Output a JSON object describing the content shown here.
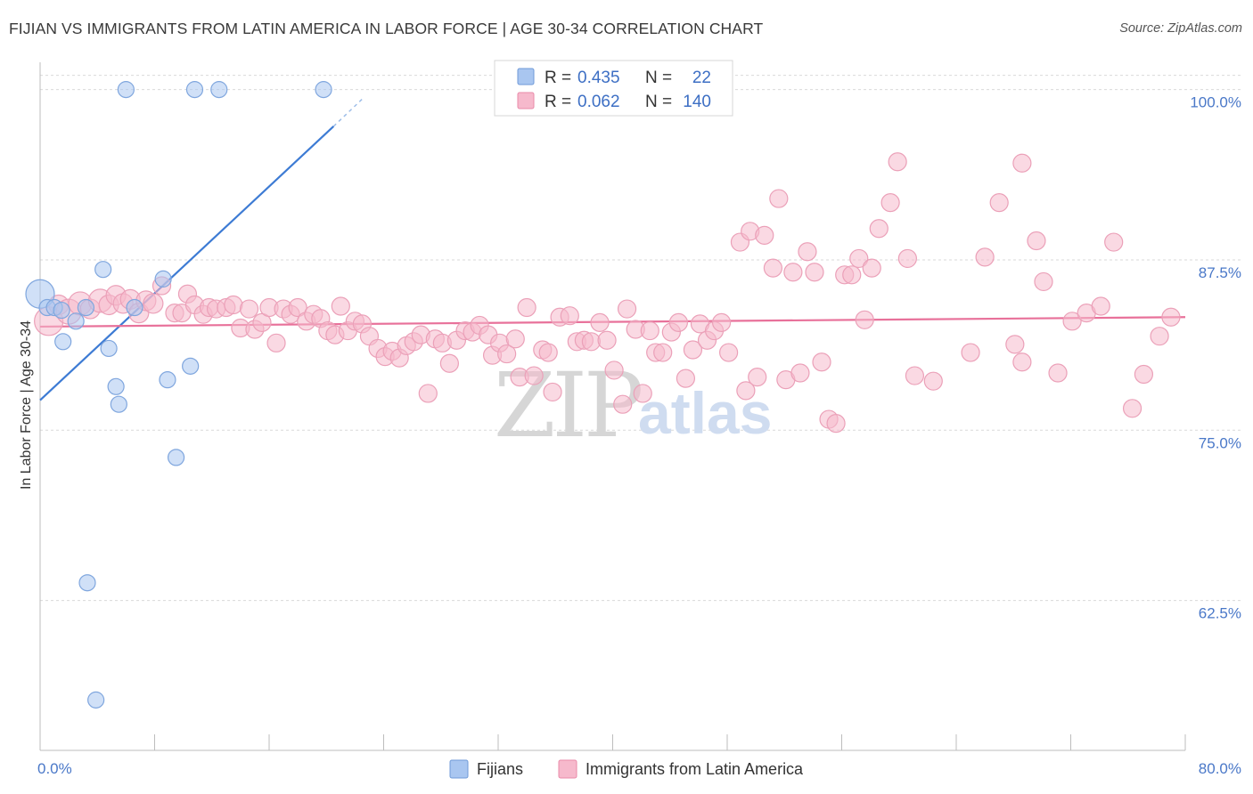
{
  "title": "FIJIAN VS IMMIGRANTS FROM LATIN AMERICA IN LABOR FORCE | AGE 30-34 CORRELATION CHART",
  "source": "Source: ZipAtlas.com",
  "chart_data": {
    "type": "scatter",
    "title": "FIJIAN VS IMMIGRANTS FROM LATIN AMERICA IN LABOR FORCE | AGE 30-34 CORRELATION CHART",
    "xlabel": "",
    "ylabel": "In Labor Force | Age 30-34",
    "xlim": [
      0,
      80
    ],
    "ylim": [
      51.5,
      102
    ],
    "x_tick_labels": [
      "0.0%",
      "80.0%"
    ],
    "y_ticks": [
      62.5,
      75.0,
      87.5,
      100.0
    ],
    "y_tick_labels": [
      "62.5%",
      "75.0%",
      "87.5%",
      "100.0%"
    ],
    "watermark": {
      "part1": "ZIP",
      "part2": "atlas"
    },
    "legend": {
      "r_label": "R =",
      "n_label": "N =",
      "entries": [
        {
          "name": "Fijians",
          "r": "0.435",
          "n": "22",
          "color": "#a9c6f0",
          "stroke": "#6f9ad8"
        },
        {
          "name": "Immigrants from Latin America",
          "r": "0.062",
          "n": "140",
          "color": "#f6b9cc",
          "stroke": "#e98aa9"
        }
      ]
    },
    "series": [
      {
        "name": "Fijians",
        "color": "#a9c6f0",
        "stroke": "#7fa6de",
        "trend": {
          "x0": 0,
          "y0": 77.2,
          "x1": 20.5,
          "y1": 97.3,
          "dash_to_x": 22.5,
          "dash_to_y": 99.3,
          "color": "#3d7bd4"
        },
        "points": [
          [
            0,
            85.0,
            16
          ],
          [
            0.5,
            84.0,
            9
          ],
          [
            1.0,
            84.0,
            9
          ],
          [
            1.5,
            83.8,
            9
          ],
          [
            2.5,
            83.0,
            9
          ],
          [
            1.6,
            81.5,
            9
          ],
          [
            6.0,
            100.0,
            9
          ],
          [
            10.8,
            100.0,
            9
          ],
          [
            12.5,
            100.0,
            9
          ],
          [
            19.8,
            100.0,
            9
          ],
          [
            4.4,
            86.8,
            9
          ],
          [
            8.6,
            86.1,
            9
          ],
          [
            3.2,
            84.0,
            9
          ],
          [
            6.6,
            84.0,
            9
          ],
          [
            4.8,
            81.0,
            9
          ],
          [
            5.3,
            78.2,
            9
          ],
          [
            5.5,
            76.9,
            9
          ],
          [
            8.9,
            78.7,
            9
          ],
          [
            10.5,
            79.7,
            9
          ],
          [
            9.5,
            73.0,
            9
          ],
          [
            3.3,
            63.8,
            9
          ],
          [
            3.9,
            55.2,
            9
          ]
        ]
      },
      {
        "name": "Immigrants from Latin America",
        "color": "#f6b9cc",
        "stroke": "#eba0b8",
        "trend": {
          "x0": 0,
          "y0": 82.6,
          "x1": 80,
          "y1": 83.3,
          "color": "#e8719a"
        },
        "points": [
          [
            0.6,
            83.0,
            16
          ],
          [
            1.3,
            84.2,
            11
          ],
          [
            2.0,
            83.7,
            14
          ],
          [
            2.8,
            84.3,
            13
          ],
          [
            3.5,
            83.9,
            11
          ],
          [
            4.2,
            84.5,
            13
          ],
          [
            4.8,
            84.2,
            11
          ],
          [
            5.3,
            84.9,
            11
          ],
          [
            5.8,
            84.3,
            11
          ],
          [
            6.3,
            84.6,
            11
          ],
          [
            6.9,
            83.6,
            11
          ],
          [
            7.4,
            84.5,
            11
          ],
          [
            7.9,
            84.3,
            11
          ],
          [
            8.5,
            85.6,
            10
          ],
          [
            9.4,
            83.6,
            10
          ],
          [
            9.9,
            83.6,
            10
          ],
          [
            10.3,
            85.0,
            10
          ],
          [
            10.8,
            84.2,
            10
          ],
          [
            11.4,
            83.5,
            10
          ],
          [
            11.8,
            84.0,
            10
          ],
          [
            12.3,
            83.9,
            10
          ],
          [
            13.0,
            84.0,
            10
          ],
          [
            13.5,
            84.2,
            10
          ],
          [
            14.0,
            82.5,
            10
          ],
          [
            14.6,
            83.9,
            10
          ],
          [
            15.0,
            82.4,
            10
          ],
          [
            15.5,
            82.9,
            10
          ],
          [
            16.0,
            84.0,
            10
          ],
          [
            16.5,
            81.4,
            10
          ],
          [
            17.0,
            83.9,
            10
          ],
          [
            17.5,
            83.5,
            10
          ],
          [
            18.0,
            84.0,
            10
          ],
          [
            18.6,
            83.0,
            10
          ],
          [
            19.1,
            83.5,
            10
          ],
          [
            19.6,
            83.2,
            10
          ],
          [
            20.1,
            82.3,
            10
          ],
          [
            20.6,
            82.0,
            10
          ],
          [
            21.0,
            84.1,
            10
          ],
          [
            21.5,
            82.3,
            10
          ],
          [
            22.0,
            83.0,
            10
          ],
          [
            22.5,
            82.8,
            10
          ],
          [
            23.0,
            81.9,
            10
          ],
          [
            23.6,
            81.0,
            10
          ],
          [
            24.1,
            80.4,
            10
          ],
          [
            24.6,
            80.8,
            10
          ],
          [
            25.1,
            80.3,
            10
          ],
          [
            25.6,
            81.2,
            10
          ],
          [
            26.1,
            81.5,
            10
          ],
          [
            26.6,
            82.0,
            10
          ],
          [
            27.1,
            77.7,
            10
          ],
          [
            27.6,
            81.7,
            10
          ],
          [
            28.1,
            81.4,
            10
          ],
          [
            28.6,
            79.9,
            10
          ],
          [
            29.1,
            81.6,
            10
          ],
          [
            29.7,
            82.3,
            10
          ],
          [
            30.2,
            82.2,
            10
          ],
          [
            30.7,
            82.7,
            10
          ],
          [
            31.3,
            82.0,
            10
          ],
          [
            31.6,
            80.5,
            10
          ],
          [
            32.1,
            81.4,
            10
          ],
          [
            32.6,
            80.6,
            10
          ],
          [
            33.2,
            81.7,
            10
          ],
          [
            33.5,
            78.9,
            10
          ],
          [
            34.0,
            84.0,
            10
          ],
          [
            34.5,
            79.0,
            10
          ],
          [
            35.1,
            80.9,
            10
          ],
          [
            35.5,
            80.7,
            10
          ],
          [
            35.8,
            77.8,
            10
          ],
          [
            36.3,
            83.3,
            10
          ],
          [
            37.0,
            83.4,
            10
          ],
          [
            37.5,
            81.5,
            10
          ],
          [
            38.0,
            81.6,
            10
          ],
          [
            38.5,
            81.5,
            10
          ],
          [
            39.1,
            82.9,
            10
          ],
          [
            39.6,
            81.6,
            10
          ],
          [
            40.1,
            79.4,
            10
          ],
          [
            40.7,
            76.9,
            10
          ],
          [
            41.0,
            83.9,
            10
          ],
          [
            41.6,
            82.4,
            10
          ],
          [
            42.1,
            77.7,
            10
          ],
          [
            42.6,
            82.3,
            10
          ],
          [
            43.0,
            80.7,
            10
          ],
          [
            43.5,
            80.7,
            10
          ],
          [
            44.1,
            82.2,
            10
          ],
          [
            44.6,
            82.9,
            10
          ],
          [
            45.1,
            78.8,
            10
          ],
          [
            45.6,
            80.9,
            10
          ],
          [
            46.1,
            82.8,
            10
          ],
          [
            46.6,
            81.6,
            10
          ],
          [
            47.1,
            82.3,
            10
          ],
          [
            47.6,
            82.9,
            10
          ],
          [
            48.1,
            80.7,
            10
          ],
          [
            48.9,
            88.8,
            10
          ],
          [
            49.3,
            77.9,
            10
          ],
          [
            49.6,
            89.6,
            10
          ],
          [
            50.1,
            78.9,
            10
          ],
          [
            50.6,
            89.3,
            10
          ],
          [
            51.2,
            86.9,
            10
          ],
          [
            51.6,
            92.0,
            10
          ],
          [
            52.1,
            78.7,
            10
          ],
          [
            52.6,
            86.6,
            10
          ],
          [
            53.1,
            79.2,
            10
          ],
          [
            53.6,
            88.1,
            10
          ],
          [
            54.1,
            86.6,
            10
          ],
          [
            54.6,
            80.0,
            10
          ],
          [
            55.1,
            75.8,
            10
          ],
          [
            55.6,
            75.5,
            10
          ],
          [
            56.2,
            86.4,
            10
          ],
          [
            56.7,
            86.4,
            10
          ],
          [
            57.2,
            87.6,
            10
          ],
          [
            57.6,
            83.1,
            10
          ],
          [
            58.1,
            86.9,
            10
          ],
          [
            58.6,
            89.8,
            10
          ],
          [
            59.4,
            91.7,
            10
          ],
          [
            59.9,
            94.7,
            10
          ],
          [
            60.6,
            87.6,
            10
          ],
          [
            61.1,
            79.0,
            10
          ],
          [
            62.4,
            78.6,
            10
          ],
          [
            65.0,
            80.7,
            10
          ],
          [
            66.0,
            87.7,
            10
          ],
          [
            67.0,
            91.7,
            10
          ],
          [
            68.1,
            81.3,
            10
          ],
          [
            68.6,
            80.0,
            10
          ],
          [
            68.6,
            94.6,
            10
          ],
          [
            69.6,
            88.9,
            10
          ],
          [
            70.1,
            85.9,
            10
          ],
          [
            71.1,
            79.2,
            10
          ],
          [
            72.1,
            83.0,
            10
          ],
          [
            73.1,
            83.6,
            10
          ],
          [
            74.1,
            84.1,
            10
          ],
          [
            75.0,
            88.8,
            10
          ],
          [
            76.3,
            76.6,
            10
          ],
          [
            77.1,
            79.1,
            10
          ],
          [
            78.2,
            81.9,
            10
          ],
          [
            79.0,
            83.3,
            10
          ]
        ]
      }
    ]
  }
}
